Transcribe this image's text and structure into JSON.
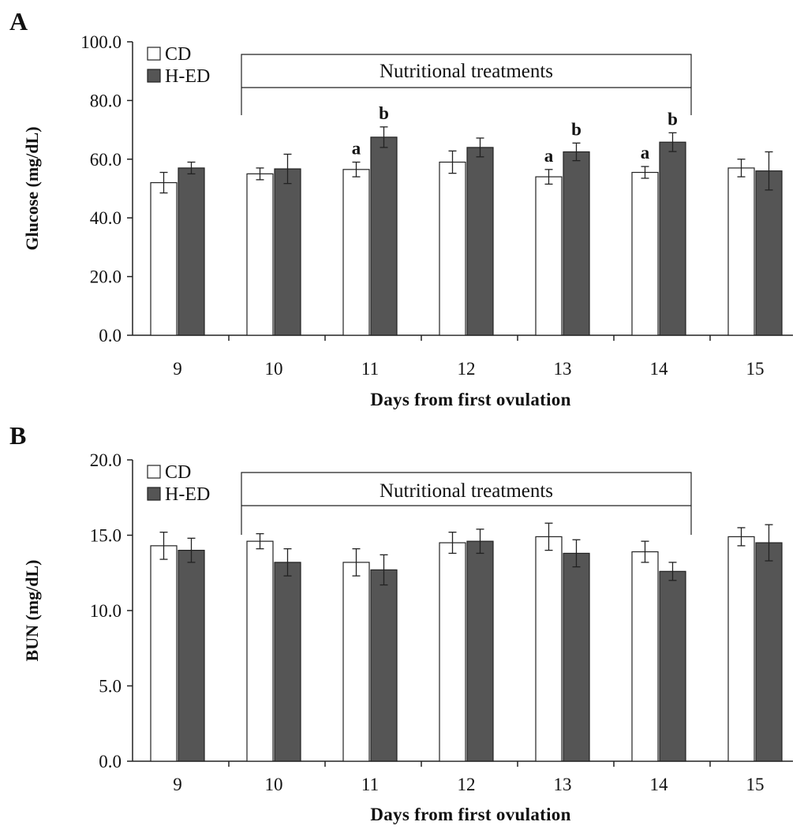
{
  "colors": {
    "cd_fill": "#ffffff",
    "hed_fill": "#555555",
    "outline": "#222222"
  },
  "chart_data": [
    {
      "panel_letter": "A",
      "type": "bar",
      "categories": [
        "9",
        "10",
        "11",
        "12",
        "13",
        "14",
        "15"
      ],
      "xlabel": "Days from first ovulation",
      "ylabel": "Glucose (mg/dL)",
      "ylim": [
        0,
        100
      ],
      "yticks": [
        "0.0",
        "20.0",
        "40.0",
        "60.0",
        "80.0",
        "100.0"
      ],
      "grid": false,
      "legend_position": "top-left",
      "series": [
        {
          "name": "CD",
          "values": [
            52.0,
            55.0,
            56.5,
            59.0,
            54.0,
            55.5,
            57.0
          ],
          "errors": [
            3.5,
            2.0,
            2.5,
            3.8,
            2.5,
            2.0,
            3.0
          ],
          "labels": [
            "",
            "",
            "a",
            "",
            "a",
            "a",
            ""
          ]
        },
        {
          "name": "H-ED",
          "values": [
            57.0,
            56.7,
            67.5,
            64.0,
            62.5,
            65.8,
            56.0
          ],
          "errors": [
            2.0,
            5.0,
            3.5,
            3.2,
            3.0,
            3.2,
            6.5
          ],
          "labels": [
            "",
            "",
            "b",
            "",
            "b",
            "b",
            ""
          ]
        }
      ],
      "annotation": {
        "text": "Nutritional treatments",
        "from_category": "10",
        "to_category": "14"
      }
    },
    {
      "panel_letter": "B",
      "type": "bar",
      "categories": [
        "9",
        "10",
        "11",
        "12",
        "13",
        "14",
        "15"
      ],
      "xlabel": "Days from first ovulation",
      "ylabel": "BUN (mg/dL)",
      "ylim": [
        0,
        20
      ],
      "yticks": [
        "0.0",
        "5.0",
        "10.0",
        "15.0",
        "20.0"
      ],
      "grid": false,
      "legend_position": "top-left",
      "series": [
        {
          "name": "CD",
          "values": [
            14.3,
            14.6,
            13.2,
            14.5,
            14.9,
            13.9,
            14.9
          ],
          "errors": [
            0.9,
            0.5,
            0.9,
            0.7,
            0.9,
            0.7,
            0.6
          ],
          "labels": [
            "",
            "",
            "",
            "",
            "",
            "",
            ""
          ]
        },
        {
          "name": "H-ED",
          "values": [
            14.0,
            13.2,
            12.7,
            14.6,
            13.8,
            12.6,
            14.5
          ],
          "errors": [
            0.8,
            0.9,
            1.0,
            0.8,
            0.9,
            0.6,
            1.2
          ],
          "labels": [
            "",
            "",
            "",
            "",
            "",
            "",
            ""
          ]
        }
      ],
      "annotation": {
        "text": "Nutritional treatments",
        "from_category": "10",
        "to_category": "14"
      }
    }
  ]
}
